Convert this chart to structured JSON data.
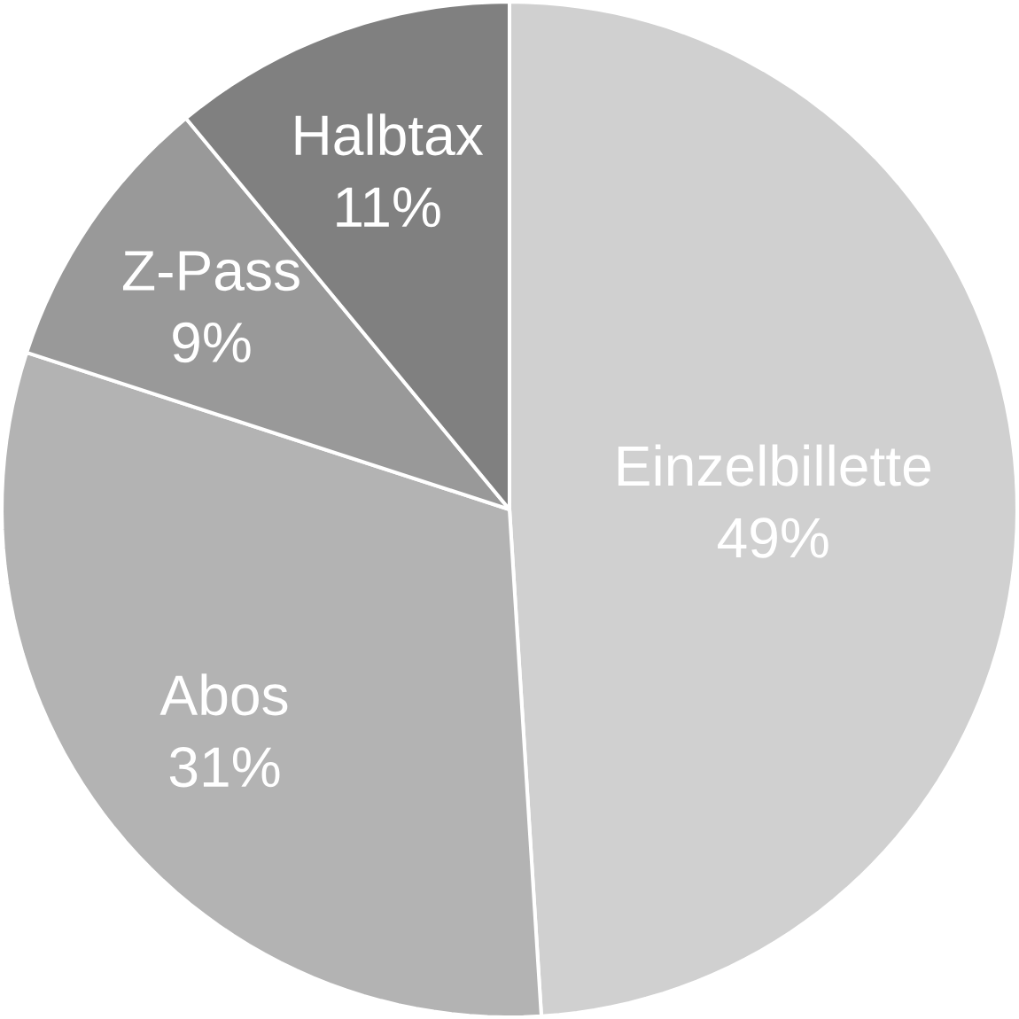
{
  "chart_data": {
    "type": "pie",
    "categories": [
      "Einzelbillette",
      "Abos",
      "Z-Pass",
      "Halbtax"
    ],
    "values": [
      49,
      31,
      9,
      11
    ],
    "value_labels": [
      "49%",
      "31%",
      "9%",
      "11%"
    ],
    "colors": [
      "#d0d0d0",
      "#b3b3b3",
      "#999999",
      "#808080"
    ]
  }
}
